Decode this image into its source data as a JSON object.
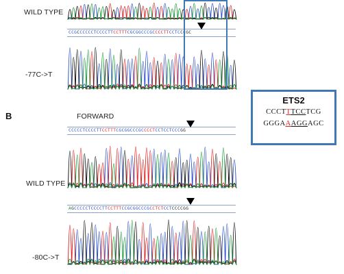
{
  "panel_b_letter": "B",
  "labels": {
    "wild_type_top": "WILD TYPE",
    "mut_77": "-77C->T",
    "forward": "FORWARD",
    "wild_type_b": "WILD TYPE",
    "mut_80": "-80C->T"
  },
  "sequences": {
    "top": [
      {
        "t": "CCG",
        "c": "#2b4ec9"
      },
      {
        "t": "C",
        "c": "#222"
      },
      {
        "t": "C",
        "c": "#2b4ec9"
      },
      {
        "t": "CCCCTCCCCTT",
        "c": "#2b4ec9"
      },
      {
        "t": "CCTTT",
        "c": "#e02020"
      },
      {
        "t": "CGCGGCCCGC",
        "c": "#2b4ec9"
      },
      {
        "t": "CCCTT",
        "c": "#e02020"
      },
      {
        "t": "CCTC",
        "c": "#2b4ec9"
      },
      {
        "t": "CCGC",
        "c": "#222"
      }
    ],
    "forward": [
      {
        "t": "CCCCCTCCCCTT",
        "c": "#2b4ec9"
      },
      {
        "t": "CCTTT",
        "c": "#e02020"
      },
      {
        "t": "CGCGGCCCGC",
        "c": "#2b4ec9"
      },
      {
        "t": "CCCT",
        "c": "#e02020"
      },
      {
        "t": "CCT",
        "c": "#2b4ec9"
      },
      {
        "t": "CCTCCC",
        "c": "#2b4ec9"
      },
      {
        "t": "GG",
        "c": "#222"
      }
    ],
    "mut80": [
      {
        "t": "A",
        "c": "#1a9a3a"
      },
      {
        "t": "G",
        "c": "#222"
      },
      {
        "t": "CCCCCTCCCCTT",
        "c": "#2b4ec9"
      },
      {
        "t": "CCTTT",
        "c": "#e02020"
      },
      {
        "t": "CCGCGGCCCGC",
        "c": "#2b4ec9"
      },
      {
        "t": "CTCT",
        "c": "#e02020"
      },
      {
        "t": "CCT",
        "c": "#2b4ec9"
      },
      {
        "t": "CCCCGG",
        "c": "#222"
      }
    ]
  },
  "ets": {
    "title": "ETS2",
    "line1_pre": "CCCT",
    "line1_mut": "T",
    "line1_core": "TCC",
    "line1_post": "TCG",
    "line2_pre": "GGGA",
    "line2_mut": "A",
    "line2_core": "AGG",
    "line2_post": "AGC"
  },
  "colors": {
    "A": "#1a9a3a",
    "C": "#2b4ec9",
    "G": "#111111",
    "T": "#e02020",
    "highlight": "#3f78b5"
  }
}
